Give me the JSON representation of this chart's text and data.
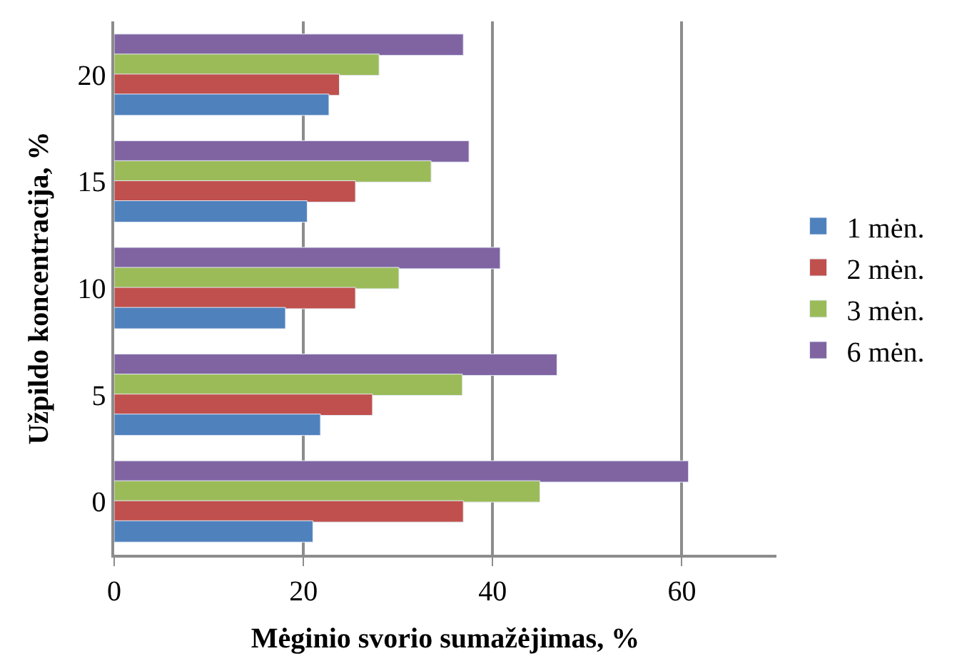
{
  "chart_data": {
    "type": "bar",
    "orientation": "horizontal",
    "xlabel": "Mėginio svorio sumažėjimas, %",
    "ylabel": "Užpildo koncentracija, %",
    "categories": [
      "20",
      "15",
      "10",
      "5",
      "0"
    ],
    "series": [
      {
        "name": "1 mėn.",
        "color": "#4f81bd",
        "values": [
          22.7,
          20.4,
          18.1,
          21.8,
          21.0
        ]
      },
      {
        "name": "2 mėn.",
        "color": "#c0504d",
        "values": [
          23.8,
          25.5,
          25.5,
          27.3,
          36.9
        ]
      },
      {
        "name": "3 mėn.",
        "color": "#9bbb59",
        "values": [
          28.0,
          33.5,
          30.1,
          36.8,
          45.0
        ]
      },
      {
        "name": "6 mėn.",
        "color": "#8064a2",
        "values": [
          36.9,
          37.5,
          40.8,
          46.8,
          60.7
        ]
      }
    ],
    "xlim": [
      0,
      70
    ],
    "xticks": [
      0,
      20,
      40,
      60
    ],
    "grid": "x",
    "legend": "right"
  }
}
